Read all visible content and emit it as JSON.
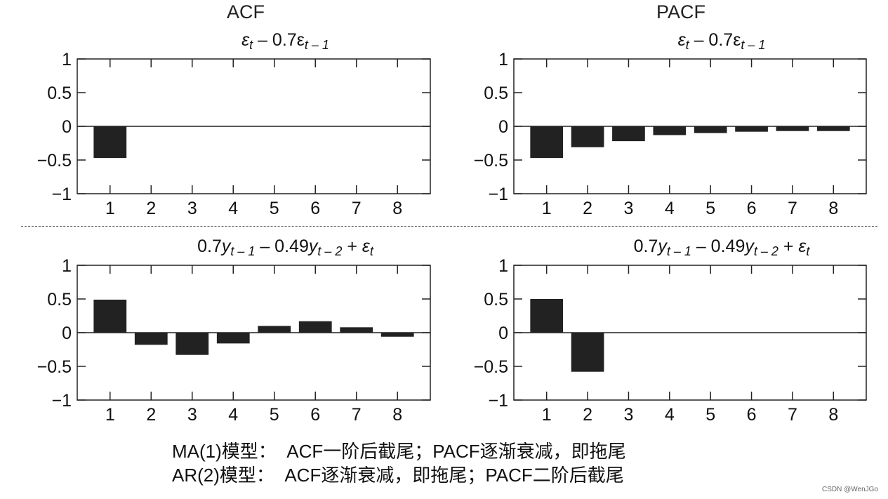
{
  "column_titles": {
    "acf": "ACF",
    "pacf": "PACF"
  },
  "chart_data": [
    {
      "type": "bar",
      "title": "εt − 0.7εt − 1",
      "title_parts": {
        "main": "ε",
        "sub1": "t",
        "mid": " – 0.7ε",
        "sub2": "t – 1"
      },
      "column": "ACF",
      "categories": [
        "1",
        "2",
        "3",
        "4",
        "5",
        "6",
        "7",
        "8"
      ],
      "values": [
        -0.47,
        0,
        0,
        0,
        0,
        0,
        0,
        0
      ],
      "ylim": [
        -1,
        1
      ],
      "yticks": [
        "1",
        "0.5",
        "0",
        "−0.5",
        "−1"
      ],
      "xlabel": "",
      "ylabel": ""
    },
    {
      "type": "bar",
      "title": "εt − 0.7εt − 1",
      "title_parts": {
        "main": "ε",
        "sub1": "t",
        "mid": " – 0.7ε",
        "sub2": "t – 1"
      },
      "column": "PACF",
      "categories": [
        "1",
        "2",
        "3",
        "4",
        "5",
        "6",
        "7",
        "8"
      ],
      "values": [
        -0.47,
        -0.31,
        -0.22,
        -0.13,
        -0.1,
        -0.08,
        -0.07,
        -0.07
      ],
      "ylim": [
        -1,
        1
      ],
      "yticks": [
        "1",
        "0.5",
        "0",
        "−0.5",
        "−1"
      ],
      "xlabel": "",
      "ylabel": ""
    },
    {
      "type": "bar",
      "title": "0.7yt − 1 − 0.49yt − 2 + εt",
      "title_parts": {
        "a": "0.7y",
        "a_sub": "t – 1",
        "b": " – 0.49y",
        "b_sub": "t – 2",
        "c": " + ε",
        "c_sub": "t"
      },
      "column": "ACF",
      "categories": [
        "1",
        "2",
        "3",
        "4",
        "5",
        "6",
        "7",
        "8"
      ],
      "values": [
        0.49,
        -0.18,
        -0.33,
        -0.16,
        0.1,
        0.17,
        0.08,
        -0.06
      ],
      "ylim": [
        -1,
        1
      ],
      "yticks": [
        "1",
        "0.5",
        "0",
        "−0.5",
        "−1"
      ],
      "xlabel": "",
      "ylabel": ""
    },
    {
      "type": "bar",
      "title": "0.7yt − 1 − 0.49yt − 2 + εt",
      "title_parts": {
        "a": "0.7y",
        "a_sub": "t – 1",
        "b": " – 0.49y",
        "b_sub": "t – 2",
        "c": " + ε",
        "c_sub": "t"
      },
      "column": "PACF",
      "categories": [
        "1",
        "2",
        "3",
        "4",
        "5",
        "6",
        "7",
        "8"
      ],
      "values": [
        0.5,
        -0.58,
        0,
        0,
        0,
        0,
        0,
        0
      ],
      "ylim": [
        -1,
        1
      ],
      "yticks": [
        "1",
        "0.5",
        "0",
        "−0.5",
        "−1"
      ],
      "xlabel": "",
      "ylabel": ""
    }
  ],
  "notes": {
    "line1": "MA(1)模型：  ACF一阶后截尾；PACF逐渐衰减，即拖尾",
    "line2": "AR(2)模型：  ACF逐渐衰减，即拖尾；PACF二阶后截尾"
  },
  "watermark": "CSDN @WenJGo",
  "colors": {
    "bar": "#222222",
    "axis": "#222222"
  }
}
